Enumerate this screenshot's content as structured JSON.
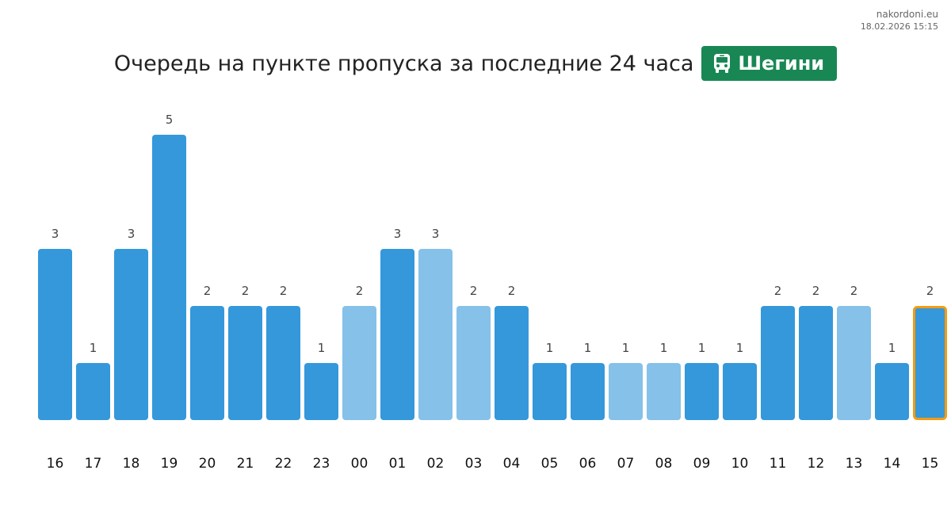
{
  "site": {
    "name": "nakordoni.eu",
    "datetime": "18.02.2026 15:15"
  },
  "header": {
    "title": "Очередь на пункте пропуска за последние 24 часа",
    "badge_label": "Шегини",
    "badge_icon": "bus-icon",
    "badge_color": "#198754"
  },
  "colors": {
    "bar_primary": "#3498db",
    "bar_light": "#85c1e9",
    "highlight_border": "#f39c12"
  },
  "chart_data": {
    "type": "bar",
    "categories": [
      "16",
      "17",
      "18",
      "19",
      "20",
      "21",
      "22",
      "23",
      "00",
      "01",
      "02",
      "03",
      "04",
      "05",
      "06",
      "07",
      "08",
      "09",
      "10",
      "11",
      "12",
      "13",
      "14",
      "15"
    ],
    "values": [
      3,
      1,
      3,
      5,
      2,
      2,
      2,
      1,
      2,
      3,
      3,
      2,
      2,
      1,
      1,
      1,
      1,
      1,
      1,
      2,
      2,
      2,
      1,
      2
    ],
    "shade": [
      "dark",
      "dark",
      "dark",
      "dark",
      "dark",
      "dark",
      "dark",
      "dark",
      "light",
      "dark",
      "light",
      "light",
      "dark",
      "dark",
      "dark",
      "light",
      "light",
      "dark",
      "dark",
      "dark",
      "dark",
      "light",
      "dark",
      "dark"
    ],
    "highlighted": "15",
    "ylim": [
      0,
      5
    ]
  }
}
